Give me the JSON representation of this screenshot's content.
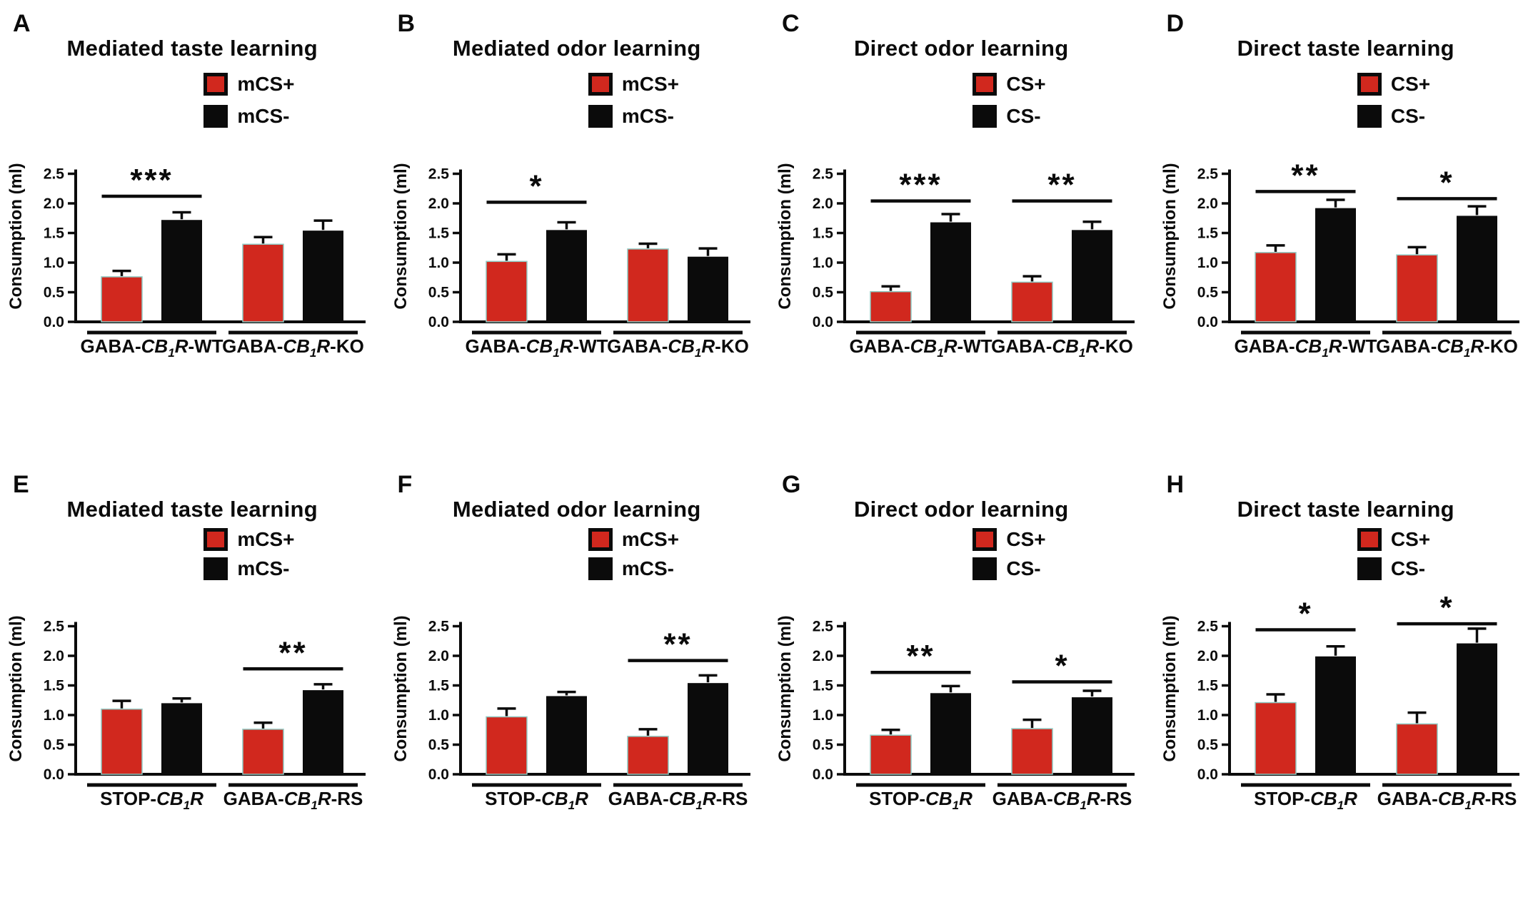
{
  "figure": {
    "ylabel": "Consumption (ml)",
    "yticks": [
      "0.0",
      "0.5",
      "1.0",
      "1.5",
      "2.0",
      "2.5"
    ],
    "colors": {
      "red": "#d1281e",
      "black": "#0b0b0b"
    }
  },
  "chart_data": [
    {
      "type": "bar",
      "panel": "A",
      "title": "Mediated taste learning",
      "ylabel": "Consumption (ml)",
      "ylim": [
        0,
        2.5
      ],
      "legend": [
        {
          "label": "mCS+",
          "color": "#d1281e"
        },
        {
          "label": "mCS-",
          "color": "#0b0b0b"
        }
      ],
      "groups": [
        {
          "label": "GABA-CB1R-WT",
          "label_parts": [
            {
              "text": "GABA-",
              "style": "n"
            },
            {
              "text": "CB",
              "style": "i"
            },
            {
              "text": "1",
              "style": "s"
            },
            {
              "text": "R",
              "style": "i"
            },
            {
              "text": "-WT",
              "style": "n"
            }
          ],
          "values": [
            0.76,
            1.72
          ],
          "errors": [
            0.1,
            0.13
          ]
        },
        {
          "label": "GABA-CB1R-KO",
          "label_parts": [
            {
              "text": "GABA-",
              "style": "n"
            },
            {
              "text": "CB",
              "style": "i"
            },
            {
              "text": "1",
              "style": "s"
            },
            {
              "text": "R",
              "style": "i"
            },
            {
              "text": "-KO",
              "style": "n"
            }
          ],
          "values": [
            1.31,
            1.54
          ],
          "errors": [
            0.12,
            0.17
          ]
        }
      ],
      "significance": [
        {
          "group": 0,
          "stars": "***",
          "y": 2.12
        }
      ]
    },
    {
      "type": "bar",
      "panel": "B",
      "title": "Mediated odor learning",
      "ylabel": "Consumption (ml)",
      "ylim": [
        0,
        2.5
      ],
      "legend": [
        {
          "label": "mCS+",
          "color": "#d1281e"
        },
        {
          "label": "mCS-",
          "color": "#0b0b0b"
        }
      ],
      "groups": [
        {
          "label": "GABA-CB1R-WT",
          "label_parts": [
            {
              "text": "GABA-",
              "style": "n"
            },
            {
              "text": "CB",
              "style": "i"
            },
            {
              "text": "1",
              "style": "s"
            },
            {
              "text": "R",
              "style": "i"
            },
            {
              "text": "-WT",
              "style": "n"
            }
          ],
          "values": [
            1.02,
            1.55
          ],
          "errors": [
            0.12,
            0.13
          ]
        },
        {
          "label": "GABA-CB1R-KO",
          "label_parts": [
            {
              "text": "GABA-",
              "style": "n"
            },
            {
              "text": "CB",
              "style": "i"
            },
            {
              "text": "1",
              "style": "s"
            },
            {
              "text": "R",
              "style": "i"
            },
            {
              "text": "-KO",
              "style": "n"
            }
          ],
          "values": [
            1.23,
            1.1
          ],
          "errors": [
            0.09,
            0.14
          ]
        }
      ],
      "significance": [
        {
          "group": 0,
          "stars": "*",
          "y": 2.02
        }
      ]
    },
    {
      "type": "bar",
      "panel": "C",
      "title": "Direct odor learning",
      "ylabel": "Consumption (ml)",
      "ylim": [
        0,
        2.5
      ],
      "legend": [
        {
          "label": "CS+",
          "color": "#d1281e"
        },
        {
          "label": "CS-",
          "color": "#0b0b0b"
        }
      ],
      "groups": [
        {
          "label": "GABA-CB1R-WT",
          "label_parts": [
            {
              "text": "GABA-",
              "style": "n"
            },
            {
              "text": "CB",
              "style": "i"
            },
            {
              "text": "1",
              "style": "s"
            },
            {
              "text": "R",
              "style": "i"
            },
            {
              "text": "-WT",
              "style": "n"
            }
          ],
          "values": [
            0.51,
            1.68
          ],
          "errors": [
            0.09,
            0.14
          ]
        },
        {
          "label": "GABA-CB1R-KO",
          "label_parts": [
            {
              "text": "GABA-",
              "style": "n"
            },
            {
              "text": "CB",
              "style": "i"
            },
            {
              "text": "1",
              "style": "s"
            },
            {
              "text": "R",
              "style": "i"
            },
            {
              "text": "-KO",
              "style": "n"
            }
          ],
          "values": [
            0.67,
            1.55
          ],
          "errors": [
            0.1,
            0.14
          ]
        }
      ],
      "significance": [
        {
          "group": 0,
          "stars": "***",
          "y": 2.04
        },
        {
          "group": 1,
          "stars": "**",
          "y": 2.04
        }
      ]
    },
    {
      "type": "bar",
      "panel": "D",
      "title": "Direct taste learning",
      "ylabel": "Consumption (ml)",
      "ylim": [
        0,
        2.5
      ],
      "legend": [
        {
          "label": "CS+",
          "color": "#d1281e"
        },
        {
          "label": "CS-",
          "color": "#0b0b0b"
        }
      ],
      "groups": [
        {
          "label": "GABA-CB1R-WT",
          "label_parts": [
            {
              "text": "GABA-",
              "style": "n"
            },
            {
              "text": "CB",
              "style": "i"
            },
            {
              "text": "1",
              "style": "s"
            },
            {
              "text": "R",
              "style": "i"
            },
            {
              "text": "-WT",
              "style": "n"
            }
          ],
          "values": [
            1.17,
            1.92
          ],
          "errors": [
            0.12,
            0.14
          ]
        },
        {
          "label": "GABA-CB1R-KO",
          "label_parts": [
            {
              "text": "GABA-",
              "style": "n"
            },
            {
              "text": "CB",
              "style": "i"
            },
            {
              "text": "1",
              "style": "s"
            },
            {
              "text": "R",
              "style": "i"
            },
            {
              "text": "-KO",
              "style": "n"
            }
          ],
          "values": [
            1.13,
            1.79
          ],
          "errors": [
            0.13,
            0.16
          ]
        }
      ],
      "significance": [
        {
          "group": 0,
          "stars": "**",
          "y": 2.2
        },
        {
          "group": 1,
          "stars": "*",
          "y": 2.08
        }
      ]
    },
    {
      "type": "bar",
      "panel": "E",
      "title": "Mediated taste learning",
      "ylabel": "Consumption (ml)",
      "ylim": [
        0,
        2.5
      ],
      "legend": [
        {
          "label": "mCS+",
          "color": "#d1281e"
        },
        {
          "label": "mCS-",
          "color": "#0b0b0b"
        }
      ],
      "groups": [
        {
          "label": "STOP-CB1R",
          "label_parts": [
            {
              "text": "STOP-",
              "style": "n"
            },
            {
              "text": "CB",
              "style": "i"
            },
            {
              "text": "1",
              "style": "s"
            },
            {
              "text": "R",
              "style": "i"
            }
          ],
          "values": [
            1.1,
            1.2
          ],
          "errors": [
            0.14,
            0.08
          ]
        },
        {
          "label": "GABA-CB1R-RS",
          "label_parts": [
            {
              "text": "GABA-",
              "style": "n"
            },
            {
              "text": "CB",
              "style": "i"
            },
            {
              "text": "1",
              "style": "s"
            },
            {
              "text": "R",
              "style": "i"
            },
            {
              "text": "-RS",
              "style": "n"
            }
          ],
          "values": [
            0.76,
            1.42
          ],
          "errors": [
            0.11,
            0.1
          ]
        }
      ],
      "significance": [
        {
          "group": 1,
          "stars": "**",
          "y": 1.78
        }
      ]
    },
    {
      "type": "bar",
      "panel": "F",
      "title": "Mediated odor learning",
      "ylabel": "Consumption (ml)",
      "ylim": [
        0,
        2.5
      ],
      "legend": [
        {
          "label": "mCS+",
          "color": "#d1281e"
        },
        {
          "label": "mCS-",
          "color": "#0b0b0b"
        }
      ],
      "groups": [
        {
          "label": "STOP-CB1R",
          "label_parts": [
            {
              "text": "STOP-",
              "style": "n"
            },
            {
              "text": "CB",
              "style": "i"
            },
            {
              "text": "1",
              "style": "s"
            },
            {
              "text": "R",
              "style": "i"
            }
          ],
          "values": [
            0.97,
            1.32
          ],
          "errors": [
            0.14,
            0.07
          ]
        },
        {
          "label": "GABA-CB1R-RS",
          "label_parts": [
            {
              "text": "GABA-",
              "style": "n"
            },
            {
              "text": "CB",
              "style": "i"
            },
            {
              "text": "1",
              "style": "s"
            },
            {
              "text": "R",
              "style": "i"
            },
            {
              "text": "-RS",
              "style": "n"
            }
          ],
          "values": [
            0.64,
            1.54
          ],
          "errors": [
            0.12,
            0.13
          ]
        }
      ],
      "significance": [
        {
          "group": 1,
          "stars": "**",
          "y": 1.92
        }
      ]
    },
    {
      "type": "bar",
      "panel": "G",
      "title": "Direct odor learning",
      "ylabel": "Consumption (ml)",
      "ylim": [
        0,
        2.5
      ],
      "legend": [
        {
          "label": "CS+",
          "color": "#d1281e"
        },
        {
          "label": "CS-",
          "color": "#0b0b0b"
        }
      ],
      "groups": [
        {
          "label": "STOP-CB1R",
          "label_parts": [
            {
              "text": "STOP-",
              "style": "n"
            },
            {
              "text": "CB",
              "style": "i"
            },
            {
              "text": "1",
              "style": "s"
            },
            {
              "text": "R",
              "style": "i"
            }
          ],
          "values": [
            0.66,
            1.37
          ],
          "errors": [
            0.09,
            0.12
          ]
        },
        {
          "label": "GABA-CB1R-RS",
          "label_parts": [
            {
              "text": "GABA-",
              "style": "n"
            },
            {
              "text": "CB",
              "style": "i"
            },
            {
              "text": "1",
              "style": "s"
            },
            {
              "text": "R",
              "style": "i"
            },
            {
              "text": "-RS",
              "style": "n"
            }
          ],
          "values": [
            0.77,
            1.3
          ],
          "errors": [
            0.15,
            0.11
          ]
        }
      ],
      "significance": [
        {
          "group": 0,
          "stars": "**",
          "y": 1.72
        },
        {
          "group": 1,
          "stars": "*",
          "y": 1.56
        }
      ]
    },
    {
      "type": "bar",
      "panel": "H",
      "title": "Direct taste learning",
      "ylabel": "Consumption (ml)",
      "ylim": [
        0,
        2.5
      ],
      "legend": [
        {
          "label": "CS+",
          "color": "#d1281e"
        },
        {
          "label": "CS-",
          "color": "#0b0b0b"
        }
      ],
      "groups": [
        {
          "label": "STOP-CB1R",
          "label_parts": [
            {
              "text": "STOP-",
              "style": "n"
            },
            {
              "text": "CB",
              "style": "i"
            },
            {
              "text": "1",
              "style": "s"
            },
            {
              "text": "R",
              "style": "i"
            }
          ],
          "values": [
            1.21,
            1.99
          ],
          "errors": [
            0.14,
            0.17
          ]
        },
        {
          "label": "GABA-CB1R-RS",
          "label_parts": [
            {
              "text": "GABA-",
              "style": "n"
            },
            {
              "text": "CB",
              "style": "i"
            },
            {
              "text": "1",
              "style": "s"
            },
            {
              "text": "R",
              "style": "i"
            },
            {
              "text": "-RS",
              "style": "n"
            }
          ],
          "values": [
            0.85,
            2.21
          ],
          "errors": [
            0.19,
            0.25
          ]
        }
      ],
      "significance": [
        {
          "group": 0,
          "stars": "*",
          "y": 2.44
        },
        {
          "group": 1,
          "stars": "*",
          "y": 2.54
        }
      ]
    }
  ]
}
